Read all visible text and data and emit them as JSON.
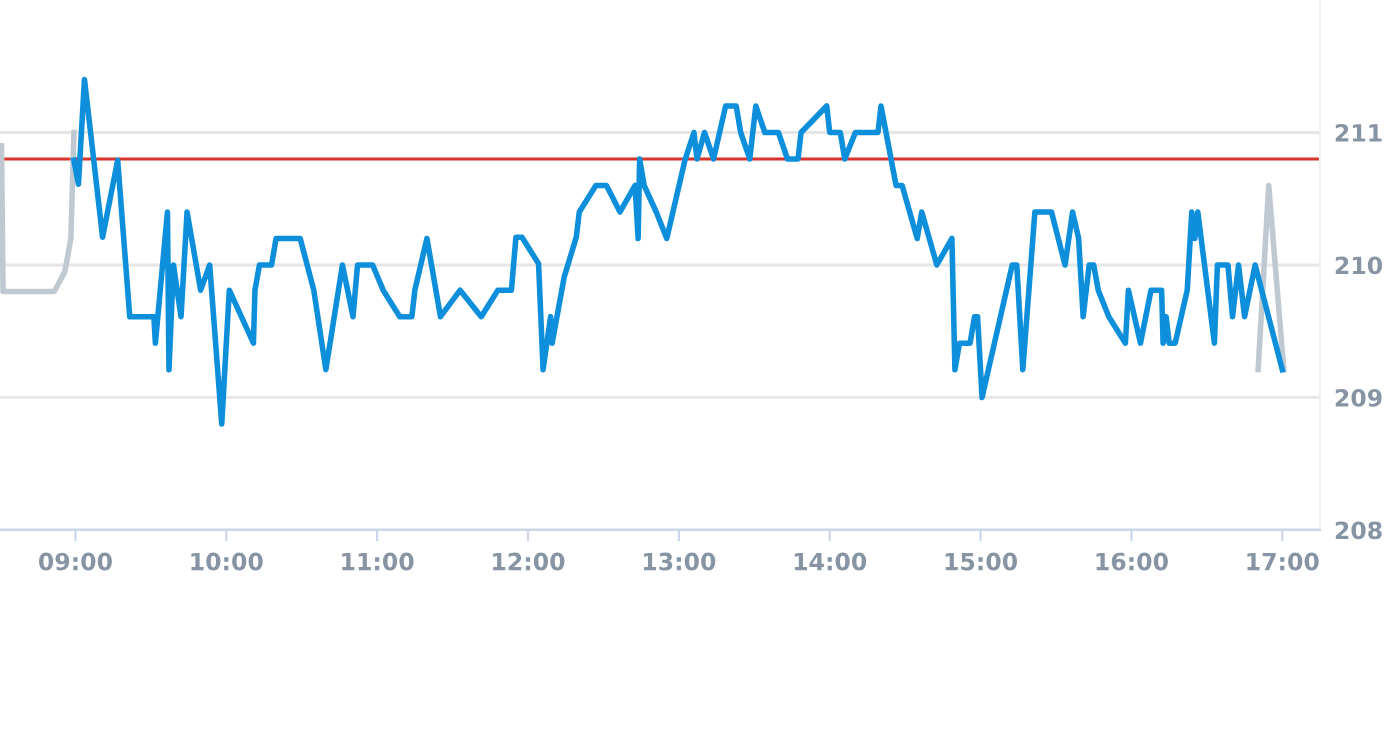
{
  "chart_data": {
    "type": "line",
    "series": [
      {
        "color": "#c0c9d2",
        "x": [
          8.51,
          8.52,
          8.86,
          8.93,
          8.97,
          8.99
        ],
        "values": [
          210.9,
          209.8,
          209.8,
          209.95,
          210.2,
          211.0
        ]
      },
      {
        "color": "#c0c9d2",
        "x": [
          16.84,
          16.91,
          17.01
        ],
        "values": [
          209.21,
          210.6,
          209.21
        ]
      },
      {
        "color": "#0d8fdc",
        "x": [
          8.99,
          9.02,
          9.06,
          9.18,
          9.28,
          9.36,
          9.52,
          9.53,
          9.61,
          9.62,
          9.65,
          9.7,
          9.74,
          9.83,
          9.89,
          9.97,
          10.02,
          10.18,
          10.19,
          10.22,
          10.3,
          10.33,
          10.49,
          10.58,
          10.66,
          10.77,
          10.84,
          10.87,
          10.97,
          11.04,
          11.15,
          11.23,
          11.25,
          11.33,
          11.42,
          11.55,
          11.69,
          11.8,
          11.89,
          11.92,
          11.96,
          12.07,
          12.1,
          12.15,
          12.16,
          12.24,
          12.32,
          12.34,
          12.45,
          12.52,
          12.61,
          12.71,
          12.73,
          12.74,
          12.77,
          12.85,
          12.92,
          13.04,
          13.1,
          13.12,
          13.17,
          13.23,
          13.31,
          13.38,
          13.41,
          13.47,
          13.51,
          13.57,
          13.66,
          13.72,
          13.79,
          13.81,
          13.98,
          14.0,
          14.07,
          14.1,
          14.17,
          14.32,
          14.34,
          14.44,
          14.48,
          14.58,
          14.61,
          14.71,
          14.81,
          14.83,
          14.86,
          14.93,
          14.96,
          14.98,
          15.01,
          15.21,
          15.24,
          15.28,
          15.36,
          15.47,
          15.56,
          15.61,
          15.65,
          15.68,
          15.72,
          15.75,
          15.78,
          15.85,
          15.96,
          15.98,
          16.06,
          16.13,
          16.2,
          16.21,
          16.23,
          16.25,
          16.29,
          16.37,
          16.4,
          16.42,
          16.44,
          16.55,
          16.57,
          16.64,
          16.67,
          16.71,
          16.75,
          16.82,
          17.0
        ],
        "values": [
          210.79,
          210.61,
          211.4,
          210.21,
          210.79,
          209.61,
          209.61,
          209.41,
          210.4,
          209.21,
          210.0,
          209.61,
          210.4,
          209.81,
          210.0,
          208.8,
          209.81,
          209.41,
          209.81,
          210.0,
          210.0,
          210.2,
          210.2,
          209.81,
          209.21,
          210.0,
          209.61,
          210.0,
          210.0,
          209.81,
          209.61,
          209.61,
          209.81,
          210.2,
          209.61,
          209.81,
          209.61,
          209.81,
          209.81,
          210.21,
          210.21,
          210.01,
          209.21,
          209.61,
          209.41,
          209.91,
          210.21,
          210.4,
          210.6,
          210.6,
          210.4,
          210.6,
          210.2,
          210.8,
          210.6,
          210.4,
          210.2,
          210.79,
          211.0,
          210.8,
          211.0,
          210.8,
          211.2,
          211.2,
          211.0,
          210.8,
          211.2,
          211.0,
          211.0,
          210.8,
          210.8,
          211.0,
          211.2,
          211.0,
          211.0,
          210.8,
          211.0,
          211.0,
          211.2,
          210.6,
          210.6,
          210.2,
          210.4,
          210.0,
          210.2,
          209.21,
          209.41,
          209.41,
          209.61,
          209.61,
          209.0,
          210.0,
          210.0,
          209.21,
          210.4,
          210.4,
          210.0,
          210.4,
          210.2,
          209.61,
          210.0,
          210.0,
          209.81,
          209.61,
          209.41,
          209.81,
          209.41,
          209.81,
          209.81,
          209.41,
          209.61,
          209.41,
          209.41,
          209.81,
          210.4,
          210.2,
          210.4,
          209.41,
          210.0,
          210.0,
          209.61,
          210.0,
          209.61,
          210.0,
          209.21
        ]
      }
    ],
    "ref_lines": [
      {
        "axis": "y",
        "value": 210.8,
        "color": "#d9342b"
      }
    ],
    "xlim": [
      8.5,
      17.25
    ],
    "xticks": [
      {
        "value": 9,
        "label": "09:00"
      },
      {
        "value": 10,
        "label": "10:00"
      },
      {
        "value": 11,
        "label": "11:00"
      },
      {
        "value": 12,
        "label": "12:00"
      },
      {
        "value": 13,
        "label": "13:00"
      },
      {
        "value": 14,
        "label": "14:00"
      },
      {
        "value": 15,
        "label": "15:00"
      },
      {
        "value": 16,
        "label": "16:00"
      },
      {
        "value": 17,
        "label": "17:00"
      }
    ],
    "ylim": [
      208,
      212
    ],
    "yticks": [
      208,
      209,
      210,
      211
    ],
    "grid": "y",
    "legend": false,
    "marker": "none",
    "line_style": "solid"
  }
}
